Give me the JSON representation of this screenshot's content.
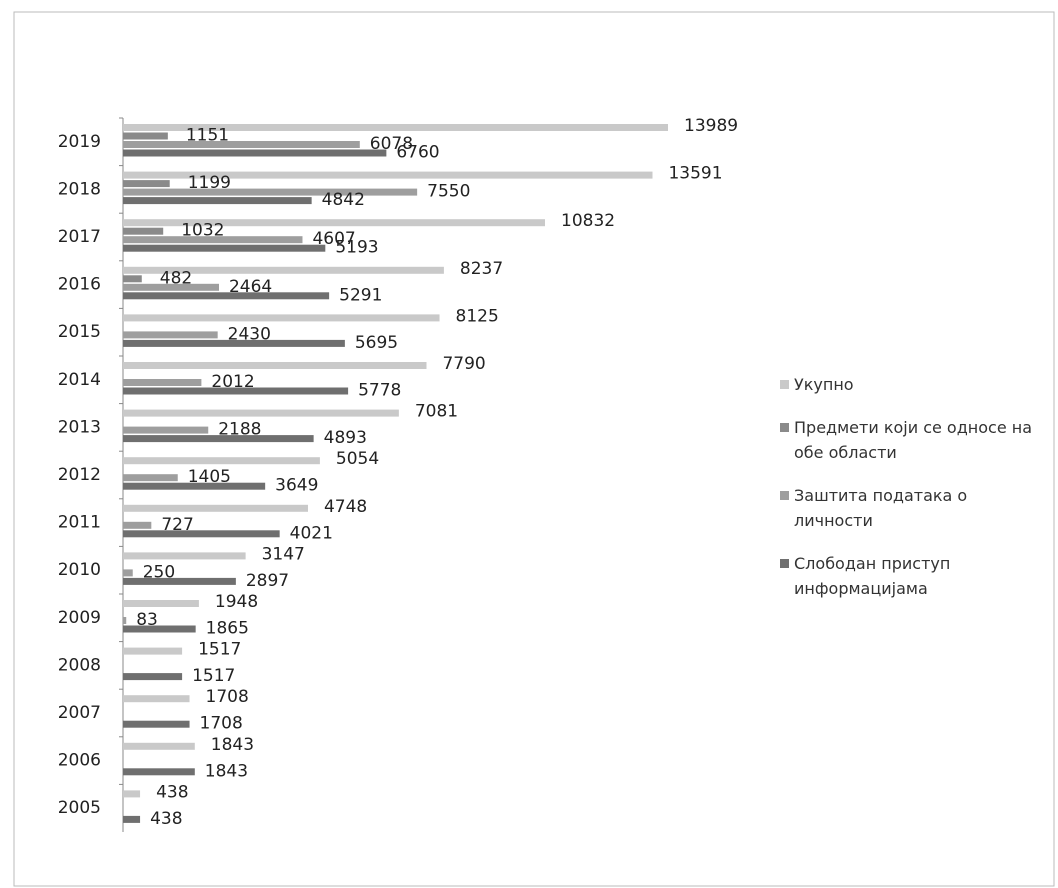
{
  "chart_data": {
    "type": "bar",
    "orientation": "horizontal",
    "categories": [
      "2019",
      "2018",
      "2017",
      "2016",
      "2015",
      "2014",
      "2013",
      "2012",
      "2011",
      "2010",
      "2009",
      "2008",
      "2007",
      "2006",
      "2005"
    ],
    "series": [
      {
        "name": "Укупно",
        "color": "#c9c9c9",
        "values": [
          13989,
          13591,
          10832,
          8237,
          8125,
          7790,
          7081,
          5054,
          4748,
          3147,
          1948,
          1517,
          1708,
          1843,
          438
        ]
      },
      {
        "name": "Предмети који се односе на обе области",
        "color": "#8a8a8a",
        "values": [
          1151,
          1199,
          1032,
          482,
          null,
          null,
          null,
          null,
          null,
          null,
          null,
          null,
          null,
          null,
          null
        ]
      },
      {
        "name": "Заштита података о личности",
        "color": "#9e9e9e",
        "values": [
          6078,
          7550,
          4607,
          2464,
          2430,
          2012,
          2188,
          1405,
          727,
          250,
          83,
          null,
          null,
          null,
          null
        ]
      },
      {
        "name": "Слободан приступ информацијама",
        "color": "#6f6f6f",
        "values": [
          6760,
          4842,
          5193,
          5291,
          5695,
          5778,
          4893,
          3649,
          4021,
          2897,
          1865,
          1517,
          1708,
          1843,
          438
        ]
      }
    ],
    "legend": "right"
  }
}
